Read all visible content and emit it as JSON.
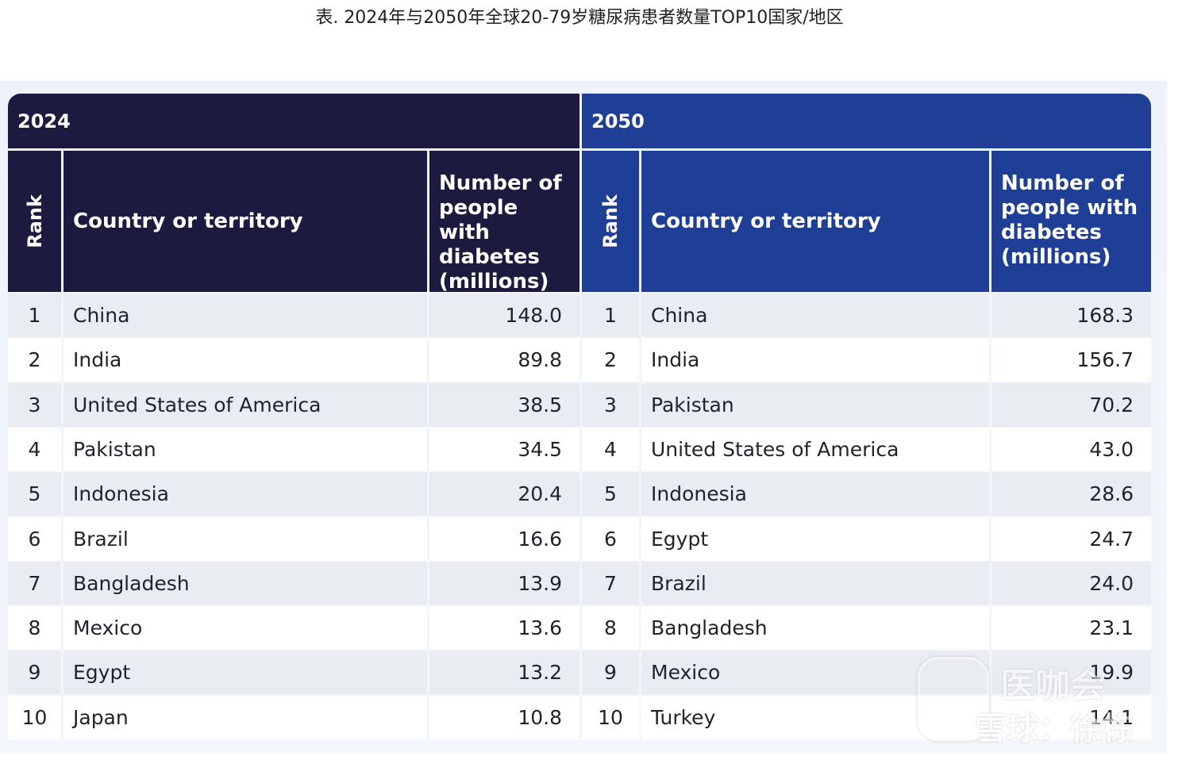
{
  "caption": "表. 2024年与2050年全球20-79岁糖尿病患者数量TOP10国家/地区",
  "headers": {
    "rank": "Rank",
    "country": "Country or territory",
    "number": "Number of people with diabetes (millions)"
  },
  "left": {
    "year": "2024",
    "rows": [
      {
        "rank": "1",
        "country": "China",
        "value": "148.0"
      },
      {
        "rank": "2",
        "country": "India",
        "value": "89.8"
      },
      {
        "rank": "3",
        "country": "United States of America",
        "value": "38.5"
      },
      {
        "rank": "4",
        "country": "Pakistan",
        "value": "34.5"
      },
      {
        "rank": "5",
        "country": "Indonesia",
        "value": "20.4"
      },
      {
        "rank": "6",
        "country": "Brazil",
        "value": "16.6"
      },
      {
        "rank": "7",
        "country": "Bangladesh",
        "value": "13.9"
      },
      {
        "rank": "8",
        "country": "Mexico",
        "value": "13.6"
      },
      {
        "rank": "9",
        "country": "Egypt",
        "value": "13.2"
      },
      {
        "rank": "10",
        "country": "Japan",
        "value": "10.8"
      }
    ]
  },
  "right": {
    "year": "2050",
    "rows": [
      {
        "rank": "1",
        "country": "China",
        "value": "168.3"
      },
      {
        "rank": "2",
        "country": "India",
        "value": "156.7"
      },
      {
        "rank": "3",
        "country": "Pakistan",
        "value": "70.2"
      },
      {
        "rank": "4",
        "country": "United States of America",
        "value": "43.0"
      },
      {
        "rank": "5",
        "country": "Indonesia",
        "value": "28.6"
      },
      {
        "rank": "6",
        "country": "Egypt",
        "value": "24.7"
      },
      {
        "rank": "7",
        "country": "Brazil",
        "value": "24.0"
      },
      {
        "rank": "8",
        "country": "Bangladesh",
        "value": "23.1"
      },
      {
        "rank": "9",
        "country": "Mexico",
        "value": "19.9"
      },
      {
        "rank": "10",
        "country": "Turkey",
        "value": "14.1"
      }
    ]
  },
  "watermark": {
    "top": "医咖会",
    "bottom": "雪球：徐栋"
  },
  "colors": {
    "header_2024": "#1c1a3f",
    "header_2050": "#1f3f97",
    "row_shade": "#e9ecf1"
  }
}
